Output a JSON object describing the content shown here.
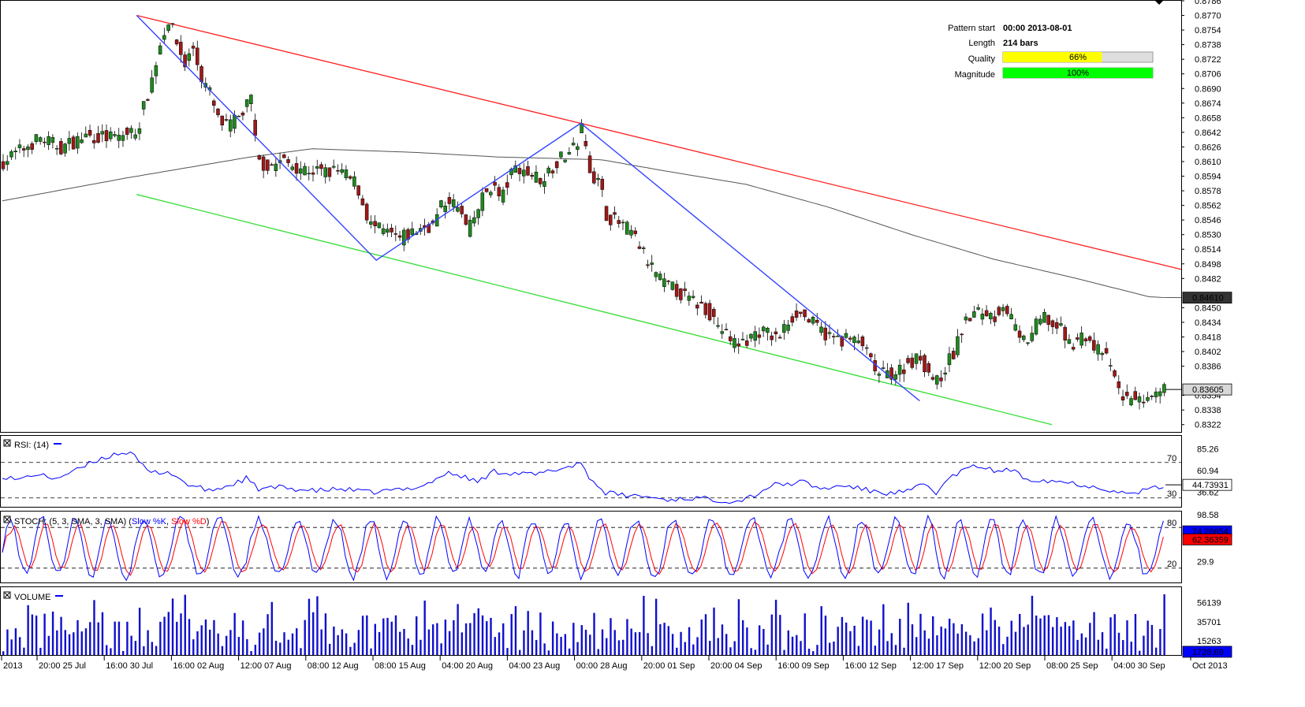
{
  "colors": {
    "up": "#1e8a1e",
    "down": "#a01818",
    "resistance": "#ff2020",
    "support": "#33dd33",
    "pattern": "#3344ff",
    "ma": "#555555",
    "rsi": "#0000ff",
    "stoch_k": "#0000ff",
    "stoch_d": "#ff0000",
    "volume": "#1010cc",
    "quality_fill": "#ffff00",
    "magnitude_fill": "#00ff00"
  },
  "info": {
    "pattern_start_label": "Pattern start",
    "pattern_start_value": "00:00 2013-08-01",
    "length_label": "Length",
    "length_value": "214 bars",
    "quality_label": "Quality",
    "quality_value": "66%",
    "quality_fraction": 0.66,
    "magnitude_label": "Magnitude",
    "magnitude_value": "100%",
    "magnitude_fraction": 1.0
  },
  "panels": {
    "rsi_title": "RSI: (14)",
    "stoch_title_prefix": "STOCH: (5, 3, SMA, 3, SMA) (",
    "stoch_k_label": "Slow %K",
    "stoch_sep": ", ",
    "stoch_d_label": "Slow %D",
    "stoch_suffix": ")",
    "volume_title": "VOLUME"
  },
  "chart_data": {
    "type": "candlestick",
    "price_axis": {
      "range": [
        0.8314,
        0.8786
      ],
      "ticks": [
        "0.8786",
        "0.8770",
        "0.8754",
        "0.8738",
        "0.8722",
        "0.8706",
        "0.8690",
        "0.8674",
        "0.8658",
        "0.8642",
        "0.8626",
        "0.8610",
        "0.8594",
        "0.8578",
        "0.8562",
        "0.8546",
        "0.8530",
        "0.8514",
        "0.8498",
        "0.8482",
        "0.8450",
        "0.8434",
        "0.8418",
        "0.8402",
        "0.8386",
        "0.8354",
        "0.8338",
        "0.8322"
      ],
      "current_ma_label": "0.84610",
      "current_ma_value": 0.8461,
      "current_price_label": "0.83605",
      "current_price_value": 0.83605
    },
    "x_labels": [
      "2013",
      "20:00 25 Jul",
      "16:00 30 Jul",
      "16:00 02 Aug",
      "12:00 07 Aug",
      "08:00 12 Aug",
      "08:00 15 Aug",
      "04:00 20 Aug",
      "04:00 23 Aug",
      "00:00 28 Aug",
      "20:00 01 Sep",
      "20:00 04 Sep",
      "16:00 09 Sep",
      "16:00 12 Sep",
      "12:00 17 Sep",
      "12:00 20 Sep",
      "08:00 25 Sep",
      "04:00 30 Sep",
      "Oct 2013"
    ],
    "close_path": [
      [
        0,
        0.861
      ],
      [
        18,
        0.8636
      ],
      [
        28,
        0.8625
      ],
      [
        40,
        0.8638
      ],
      [
        55,
        0.8636
      ],
      [
        65,
        0.8645
      ],
      [
        72,
        0.87
      ],
      [
        77,
        0.8748
      ],
      [
        80,
        0.8765
      ],
      [
        84,
        0.874
      ],
      [
        88,
        0.8716
      ],
      [
        92,
        0.8735
      ],
      [
        96,
        0.8702
      ],
      [
        100,
        0.8685
      ],
      [
        104,
        0.8655
      ],
      [
        108,
        0.8648
      ],
      [
        113,
        0.8655
      ],
      [
        117,
        0.8668
      ],
      [
        120,
        0.8678
      ],
      [
        123,
        0.861
      ],
      [
        128,
        0.8605
      ],
      [
        135,
        0.861
      ],
      [
        142,
        0.8605
      ],
      [
        150,
        0.86
      ],
      [
        157,
        0.8598
      ],
      [
        163,
        0.86
      ],
      [
        167,
        0.8592
      ],
      [
        171,
        0.8586
      ],
      [
        174,
        0.8564
      ],
      [
        178,
        0.854
      ],
      [
        182,
        0.8535
      ],
      [
        187,
        0.853
      ],
      [
        192,
        0.8525
      ],
      [
        198,
        0.8532
      ],
      [
        203,
        0.8538
      ],
      [
        208,
        0.854
      ],
      [
        212,
        0.856
      ],
      [
        216,
        0.857
      ],
      [
        221,
        0.8555
      ],
      [
        225,
        0.8533
      ],
      [
        229,
        0.8553
      ],
      [
        233,
        0.8575
      ],
      [
        237,
        0.8585
      ],
      [
        241,
        0.8567
      ],
      [
        245,
        0.8592
      ],
      [
        249,
        0.8606
      ],
      [
        253,
        0.8598
      ],
      [
        257,
        0.8595
      ],
      [
        261,
        0.859
      ],
      [
        265,
        0.8603
      ],
      [
        269,
        0.8612
      ],
      [
        273,
        0.8618
      ],
      [
        277,
        0.8625
      ],
      [
        280,
        0.8646
      ],
      [
        283,
        0.8612
      ],
      [
        286,
        0.8592
      ],
      [
        289,
        0.8585
      ],
      [
        292,
        0.8552
      ],
      [
        296,
        0.8545
      ],
      [
        300,
        0.854
      ],
      [
        304,
        0.8532
      ],
      [
        308,
        0.8518
      ],
      [
        312,
        0.85
      ],
      [
        316,
        0.8488
      ],
      [
        320,
        0.8475
      ],
      [
        325,
        0.847
      ],
      [
        330,
        0.8462
      ],
      [
        335,
        0.8455
      ],
      [
        340,
        0.845
      ],
      [
        345,
        0.8435
      ],
      [
        350,
        0.842
      ],
      [
        355,
        0.841
      ],
      [
        360,
        0.8414
      ],
      [
        365,
        0.8425
      ],
      [
        370,
        0.8422
      ],
      [
        375,
        0.8415
      ],
      [
        380,
        0.8435
      ],
      [
        384,
        0.8445
      ],
      [
        388,
        0.844
      ],
      [
        392,
        0.8432
      ],
      [
        396,
        0.8425
      ],
      [
        400,
        0.8418
      ],
      [
        404,
        0.8415
      ],
      [
        408,
        0.8416
      ],
      [
        412,
        0.8413
      ],
      [
        416,
        0.841
      ],
      [
        420,
        0.839
      ],
      [
        424,
        0.8376
      ],
      [
        428,
        0.8378
      ],
      [
        432,
        0.838
      ],
      [
        436,
        0.8385
      ],
      [
        440,
        0.8392
      ],
      [
        444,
        0.8395
      ],
      [
        448,
        0.838
      ],
      [
        452,
        0.8368
      ],
      [
        456,
        0.8385
      ],
      [
        460,
        0.84
      ],
      [
        464,
        0.8425
      ],
      [
        468,
        0.844
      ],
      [
        472,
        0.8445
      ],
      [
        476,
        0.8445
      ],
      [
        480,
        0.844
      ],
      [
        484,
        0.8455
      ],
      [
        488,
        0.8438
      ],
      [
        492,
        0.8412
      ],
      [
        496,
        0.8415
      ],
      [
        500,
        0.843
      ],
      [
        504,
        0.844
      ],
      [
        508,
        0.843
      ],
      [
        512,
        0.8425
      ],
      [
        516,
        0.841
      ],
      [
        520,
        0.8415
      ],
      [
        524,
        0.842
      ],
      [
        528,
        0.8405
      ],
      [
        532,
        0.8402
      ],
      [
        536,
        0.8385
      ],
      [
        540,
        0.836
      ],
      [
        544,
        0.8348
      ],
      [
        548,
        0.8355
      ],
      [
        552,
        0.834
      ],
      [
        556,
        0.8348
      ],
      [
        560,
        0.8355
      ],
      [
        563,
        0.83605
      ]
    ],
    "ma_path": [
      [
        0,
        0.8567
      ],
      [
        60,
        0.8592
      ],
      [
        120,
        0.8615
      ],
      [
        150,
        0.8624
      ],
      [
        200,
        0.862
      ],
      [
        240,
        0.8615
      ],
      [
        290,
        0.8612
      ],
      [
        320,
        0.86
      ],
      [
        360,
        0.8585
      ],
      [
        400,
        0.856
      ],
      [
        440,
        0.853
      ],
      [
        480,
        0.8503
      ],
      [
        520,
        0.8482
      ],
      [
        555,
        0.8462
      ],
      [
        563,
        0.8461
      ]
    ],
    "resistance_line": [
      [
        65,
        0.877
      ],
      [
        563,
        0.8492
      ]
    ],
    "support_line": [
      [
        65,
        0.8574
      ],
      [
        508,
        0.8322
      ]
    ],
    "pattern_zigzag": [
      [
        65,
        0.877
      ],
      [
        181,
        0.8502
      ],
      [
        280,
        0.8652
      ],
      [
        444,
        0.8348
      ]
    ],
    "rsi": {
      "range": [
        20,
        100
      ],
      "levels": [
        70,
        30
      ],
      "axis_ticks": [
        "85.26",
        "60.94",
        "36.62"
      ],
      "level_labels": [
        "70",
        "30"
      ],
      "current_label": "44.73931",
      "current_value": 44.74,
      "path": [
        [
          0,
          55
        ],
        [
          8,
          50
        ],
        [
          15,
          57
        ],
        [
          25,
          52
        ],
        [
          35,
          60
        ],
        [
          45,
          72
        ],
        [
          55,
          80
        ],
        [
          62,
          82
        ],
        [
          66,
          70
        ],
        [
          72,
          58
        ],
        [
          80,
          60
        ],
        [
          90,
          45
        ],
        [
          100,
          38
        ],
        [
          110,
          44
        ],
        [
          118,
          52
        ],
        [
          124,
          40
        ],
        [
          135,
          42
        ],
        [
          150,
          38
        ],
        [
          165,
          40
        ],
        [
          178,
          36
        ],
        [
          186,
          38
        ],
        [
          195,
          40
        ],
        [
          205,
          45
        ],
        [
          215,
          58
        ],
        [
          222,
          55
        ],
        [
          230,
          48
        ],
        [
          238,
          60
        ],
        [
          248,
          58
        ],
        [
          258,
          56
        ],
        [
          268,
          62
        ],
        [
          274,
          65
        ],
        [
          280,
          70
        ],
        [
          285,
          50
        ],
        [
          292,
          36
        ],
        [
          300,
          33
        ],
        [
          310,
          32
        ],
        [
          322,
          28
        ],
        [
          335,
          30
        ],
        [
          345,
          28
        ],
        [
          355,
          26
        ],
        [
          365,
          34
        ],
        [
          372,
          44
        ],
        [
          380,
          46
        ],
        [
          388,
          48
        ],
        [
          396,
          40
        ],
        [
          408,
          44
        ],
        [
          420,
          38
        ],
        [
          430,
          35
        ],
        [
          440,
          38
        ],
        [
          446,
          46
        ],
        [
          452,
          36
        ],
        [
          460,
          55
        ],
        [
          468,
          64
        ],
        [
          474,
          66
        ],
        [
          480,
          60
        ],
        [
          488,
          62
        ],
        [
          495,
          52
        ],
        [
          505,
          50
        ],
        [
          515,
          48
        ],
        [
          525,
          44
        ],
        [
          535,
          40
        ],
        [
          545,
          34
        ],
        [
          552,
          38
        ],
        [
          560,
          42
        ],
        [
          563,
          45
        ]
      ]
    },
    "stochastic": {
      "range": [
        0,
        100
      ],
      "levels": [
        80,
        20
      ],
      "axis_ticks": [
        "98.58",
        "29.9"
      ],
      "level_labels": [
        "80",
        "20"
      ],
      "k_label": "74.26654",
      "k_value": 74.27,
      "d_label": "62.36359",
      "d_value": 62.36,
      "cycle_period": 17
    },
    "volume": {
      "range": [
        0,
        72000
      ],
      "axis_ticks": [
        "56139",
        "35701",
        "15263"
      ],
      "current_label": "1728.69",
      "current_value": 1728.69
    }
  }
}
